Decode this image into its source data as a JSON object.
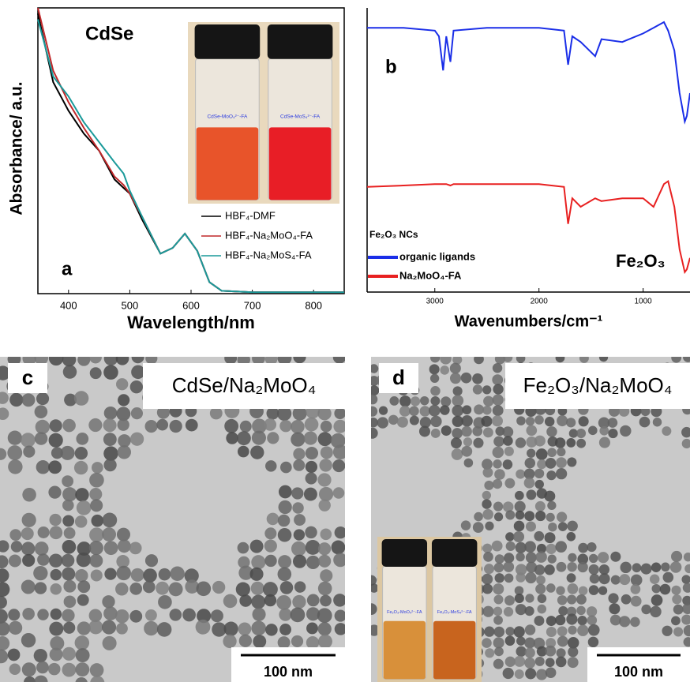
{
  "chart_data": [
    {
      "type": "line",
      "sample_label": "CdSe",
      "panel_label": "a",
      "x_label": "Wavelength/nm",
      "y_label": "Absorbance/ a.u.",
      "inset_labels": [
        "CdSe-MoO₄²⁻-FA",
        "CdSe-MoS₄²⁻-FA"
      ],
      "x": [
        350,
        375,
        400,
        425,
        450,
        475,
        490,
        500,
        520,
        550,
        570,
        590,
        610,
        630,
        650,
        700,
        750,
        800,
        850
      ],
      "xlim": [
        350,
        850
      ],
      "xticks": [
        400,
        500,
        600,
        700,
        800
      ],
      "ylim": [
        0,
        1
      ],
      "series": [
        {
          "name": "HBF₄-DMF",
          "color": "#000000",
          "values": [
            0.98,
            0.74,
            0.64,
            0.56,
            0.5,
            0.4,
            0.37,
            0.35,
            0.26,
            0.14,
            0.16,
            0.21,
            0.15,
            0.04,
            0.01,
            0.005,
            0.005,
            0.005,
            0.005
          ]
        },
        {
          "name": "HBF₄-Na₂MoO₄-FA",
          "color": "#c0282a",
          "values": [
            1.0,
            0.78,
            0.67,
            0.58,
            0.5,
            0.41,
            0.38,
            0.35,
            0.27,
            0.14,
            0.16,
            0.21,
            0.15,
            0.04,
            0.01,
            0.005,
            0.005,
            0.005,
            0.005
          ]
        },
        {
          "name": "HBF₄-Na₂MoS₄-FA",
          "color": "#1a9a9a",
          "values": [
            0.96,
            0.76,
            0.69,
            0.6,
            0.53,
            0.46,
            0.42,
            0.36,
            0.27,
            0.14,
            0.16,
            0.21,
            0.15,
            0.04,
            0.01,
            0.005,
            0.005,
            0.005,
            0.005
          ]
        }
      ]
    },
    {
      "type": "line",
      "panel_label": "b",
      "sample_label": "Fe₂O₃",
      "legend_title": "Fe₂O₃ NCs",
      "x_label": "Wavenumbers/cm⁻¹",
      "x": [
        3650,
        3300,
        3000,
        2960,
        2920,
        2890,
        2850,
        2820,
        2500,
        2000,
        1760,
        1720,
        1680,
        1600,
        1460,
        1400,
        1200,
        1000,
        900,
        800,
        760,
        700,
        650,
        600,
        580,
        550
      ],
      "xlim": [
        3650,
        550
      ],
      "xticks": [
        3000,
        2000,
        1000
      ],
      "ylim": [
        0,
        1
      ],
      "series": [
        {
          "name": "organic ligands",
          "color": "#1a2ee8",
          "values": [
            0.93,
            0.93,
            0.92,
            0.9,
            0.78,
            0.9,
            0.81,
            0.92,
            0.93,
            0.93,
            0.92,
            0.8,
            0.9,
            0.88,
            0.83,
            0.89,
            0.88,
            0.91,
            0.93,
            0.95,
            0.92,
            0.85,
            0.7,
            0.6,
            0.62,
            0.7
          ]
        },
        {
          "name": "Na₂MoO₄-FA",
          "color": "#e82020",
          "values": [
            0.37,
            0.375,
            0.38,
            0.38,
            0.38,
            0.38,
            0.375,
            0.38,
            0.38,
            0.38,
            0.37,
            0.24,
            0.33,
            0.3,
            0.33,
            0.32,
            0.33,
            0.33,
            0.3,
            0.38,
            0.39,
            0.3,
            0.15,
            0.07,
            0.08,
            0.12
          ]
        }
      ]
    }
  ],
  "panels": [
    {
      "label": "c",
      "title": "CdSe/Na₂MoO₄",
      "scale_bar": "100 nm"
    },
    {
      "label": "d",
      "title": "Fe₂O₃/Na₂MoO₄",
      "scale_bar": "100 nm",
      "inset_labels": [
        "Fe₂O₃-MoO₄²⁻-FA",
        "Fe₂O₃-MoS₄²⁻-FA"
      ]
    }
  ]
}
